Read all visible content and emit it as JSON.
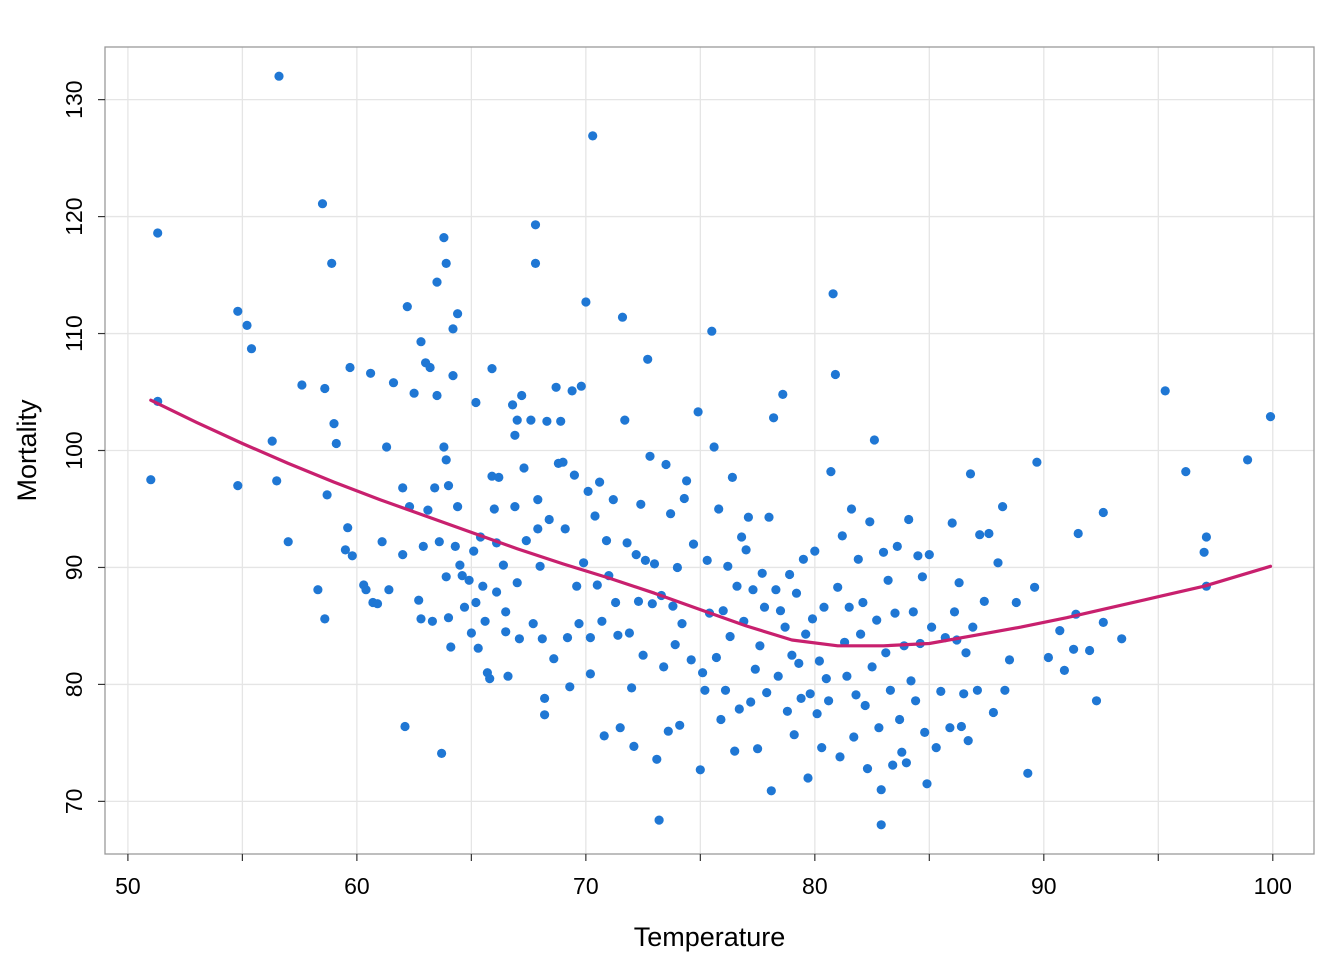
{
  "chart_data": {
    "type": "scatter",
    "title": "",
    "xlabel": "Temperature",
    "ylabel": "Mortality",
    "xlim": [
      49,
      101.8
    ],
    "ylim": [
      65.5,
      134.5
    ],
    "x_ticks": [
      50,
      60,
      70,
      80,
      90,
      100
    ],
    "y_ticks": [
      70,
      80,
      90,
      100,
      110,
      120,
      130
    ],
    "x_tick_labels": [
      "50",
      "60",
      "70",
      "80",
      "90",
      "100"
    ],
    "y_tick_labels": [
      "70",
      "80",
      "90",
      "100",
      "110",
      "120",
      "130"
    ],
    "grid": true,
    "colors": {
      "points": "#1f77d4",
      "smooth": "#c8206e",
      "grid": "#e5e5e5",
      "border": "#9a9a9a"
    },
    "points": [
      [
        51.0,
        97.5
      ],
      [
        51.3,
        104.2
      ],
      [
        51.3,
        118.6
      ],
      [
        54.8,
        111.9
      ],
      [
        54.8,
        97.0
      ],
      [
        55.2,
        110.7
      ],
      [
        55.4,
        108.7
      ],
      [
        56.3,
        100.8
      ],
      [
        56.5,
        97.4
      ],
      [
        56.6,
        132.0
      ],
      [
        57.0,
        92.2
      ],
      [
        57.6,
        105.6
      ],
      [
        58.3,
        88.1
      ],
      [
        58.5,
        121.1
      ],
      [
        58.6,
        105.3
      ],
      [
        58.6,
        85.6
      ],
      [
        58.7,
        96.2
      ],
      [
        58.9,
        116.0
      ],
      [
        59.0,
        102.3
      ],
      [
        59.1,
        100.6
      ],
      [
        59.5,
        91.5
      ],
      [
        59.6,
        93.4
      ],
      [
        59.7,
        107.1
      ],
      [
        59.8,
        91.0
      ],
      [
        60.3,
        88.5
      ],
      [
        60.4,
        88.1
      ],
      [
        60.6,
        106.6
      ],
      [
        60.7,
        87.0
      ],
      [
        60.9,
        86.9
      ],
      [
        61.1,
        92.2
      ],
      [
        61.3,
        100.3
      ],
      [
        61.4,
        88.1
      ],
      [
        61.6,
        105.8
      ],
      [
        62.0,
        96.8
      ],
      [
        62.0,
        91.1
      ],
      [
        62.1,
        76.4
      ],
      [
        62.2,
        112.3
      ],
      [
        62.3,
        95.2
      ],
      [
        62.5,
        104.9
      ],
      [
        62.7,
        87.2
      ],
      [
        62.8,
        109.3
      ],
      [
        62.8,
        85.6
      ],
      [
        62.9,
        91.8
      ],
      [
        63.0,
        107.5
      ],
      [
        63.1,
        94.9
      ],
      [
        63.2,
        107.1
      ],
      [
        63.3,
        85.4
      ],
      [
        63.4,
        96.8
      ],
      [
        63.5,
        114.4
      ],
      [
        63.5,
        104.7
      ],
      [
        63.6,
        92.2
      ],
      [
        63.7,
        74.1
      ],
      [
        63.8,
        118.2
      ],
      [
        63.8,
        100.3
      ],
      [
        63.9,
        116.0
      ],
      [
        63.9,
        99.2
      ],
      [
        63.9,
        89.2
      ],
      [
        64.0,
        97.0
      ],
      [
        64.0,
        85.7
      ],
      [
        64.1,
        83.2
      ],
      [
        64.2,
        110.4
      ],
      [
        64.2,
        106.4
      ],
      [
        64.3,
        91.8
      ],
      [
        64.4,
        111.7
      ],
      [
        64.4,
        95.2
      ],
      [
        64.5,
        90.2
      ],
      [
        64.6,
        89.3
      ],
      [
        64.7,
        86.6
      ],
      [
        64.9,
        88.9
      ],
      [
        65.0,
        84.4
      ],
      [
        65.1,
        91.4
      ],
      [
        65.2,
        104.1
      ],
      [
        65.2,
        87.0
      ],
      [
        65.3,
        83.1
      ],
      [
        65.4,
        92.6
      ],
      [
        65.5,
        88.4
      ],
      [
        65.6,
        85.4
      ],
      [
        65.7,
        81.0
      ],
      [
        65.8,
        80.5
      ],
      [
        65.9,
        107.0
      ],
      [
        65.9,
        97.8
      ],
      [
        66.0,
        95.0
      ],
      [
        66.1,
        92.1
      ],
      [
        66.1,
        87.9
      ],
      [
        66.2,
        97.7
      ],
      [
        66.4,
        90.2
      ],
      [
        66.5,
        86.2
      ],
      [
        66.5,
        84.5
      ],
      [
        66.6,
        80.7
      ],
      [
        66.8,
        103.9
      ],
      [
        66.9,
        101.3
      ],
      [
        66.9,
        95.2
      ],
      [
        67.0,
        102.6
      ],
      [
        67.0,
        88.7
      ],
      [
        67.1,
        83.9
      ],
      [
        67.2,
        104.7
      ],
      [
        67.3,
        98.5
      ],
      [
        67.4,
        92.3
      ],
      [
        67.6,
        102.6
      ],
      [
        67.7,
        85.2
      ],
      [
        67.8,
        119.3
      ],
      [
        67.8,
        116.0
      ],
      [
        67.9,
        95.8
      ],
      [
        67.9,
        93.3
      ],
      [
        68.0,
        90.1
      ],
      [
        68.1,
        83.9
      ],
      [
        68.2,
        78.8
      ],
      [
        68.2,
        77.4
      ],
      [
        68.3,
        102.5
      ],
      [
        68.4,
        94.1
      ],
      [
        68.6,
        82.2
      ],
      [
        68.7,
        105.4
      ],
      [
        68.8,
        98.9
      ],
      [
        68.9,
        102.5
      ],
      [
        69.0,
        99.0
      ],
      [
        69.1,
        93.3
      ],
      [
        69.2,
        84.0
      ],
      [
        69.3,
        79.8
      ],
      [
        69.4,
        105.1
      ],
      [
        69.5,
        97.9
      ],
      [
        69.6,
        88.4
      ],
      [
        69.7,
        85.2
      ],
      [
        69.8,
        105.5
      ],
      [
        69.9,
        90.4
      ],
      [
        70.0,
        112.7
      ],
      [
        70.1,
        96.5
      ],
      [
        70.2,
        84.0
      ],
      [
        70.2,
        80.9
      ],
      [
        70.3,
        126.9
      ],
      [
        70.4,
        94.4
      ],
      [
        70.5,
        88.5
      ],
      [
        70.6,
        97.3
      ],
      [
        70.7,
        85.4
      ],
      [
        70.8,
        75.6
      ],
      [
        70.9,
        92.3
      ],
      [
        71.0,
        89.3
      ],
      [
        71.2,
        95.8
      ],
      [
        71.3,
        87.0
      ],
      [
        71.4,
        84.2
      ],
      [
        71.5,
        76.3
      ],
      [
        71.6,
        111.4
      ],
      [
        71.7,
        102.6
      ],
      [
        71.8,
        92.1
      ],
      [
        71.9,
        84.4
      ],
      [
        72.0,
        79.7
      ],
      [
        72.1,
        74.7
      ],
      [
        72.2,
        91.1
      ],
      [
        72.3,
        87.1
      ],
      [
        72.4,
        95.4
      ],
      [
        72.5,
        82.5
      ],
      [
        72.6,
        90.6
      ],
      [
        72.7,
        107.8
      ],
      [
        72.8,
        99.5
      ],
      [
        72.9,
        86.9
      ],
      [
        73.0,
        90.3
      ],
      [
        73.1,
        73.6
      ],
      [
        73.2,
        68.4
      ],
      [
        73.3,
        87.6
      ],
      [
        73.4,
        81.5
      ],
      [
        73.5,
        98.8
      ],
      [
        73.6,
        76.0
      ],
      [
        73.7,
        94.6
      ],
      [
        73.8,
        86.7
      ],
      [
        73.9,
        83.4
      ],
      [
        74.0,
        90.0
      ],
      [
        74.1,
        76.5
      ],
      [
        74.2,
        85.2
      ],
      [
        74.3,
        95.9
      ],
      [
        74.4,
        97.4
      ],
      [
        74.6,
        82.1
      ],
      [
        74.7,
        92.0
      ],
      [
        74.9,
        103.3
      ],
      [
        75.0,
        72.7
      ],
      [
        75.1,
        81.0
      ],
      [
        75.2,
        79.5
      ],
      [
        75.3,
        90.6
      ],
      [
        75.4,
        86.1
      ],
      [
        75.5,
        110.2
      ],
      [
        75.6,
        100.3
      ],
      [
        75.7,
        82.3
      ],
      [
        75.8,
        95.0
      ],
      [
        75.9,
        77.0
      ],
      [
        76.0,
        86.3
      ],
      [
        76.1,
        79.5
      ],
      [
        76.2,
        90.1
      ],
      [
        76.3,
        84.1
      ],
      [
        76.4,
        97.7
      ],
      [
        76.5,
        74.3
      ],
      [
        76.6,
        88.4
      ],
      [
        76.7,
        77.9
      ],
      [
        76.8,
        92.6
      ],
      [
        76.9,
        85.4
      ],
      [
        77.0,
        91.5
      ],
      [
        77.1,
        94.3
      ],
      [
        77.2,
        78.5
      ],
      [
        77.3,
        88.1
      ],
      [
        77.4,
        81.3
      ],
      [
        77.5,
        74.5
      ],
      [
        77.6,
        83.3
      ],
      [
        77.7,
        89.5
      ],
      [
        77.8,
        86.6
      ],
      [
        77.9,
        79.3
      ],
      [
        78.0,
        94.3
      ],
      [
        78.1,
        70.9
      ],
      [
        78.2,
        102.8
      ],
      [
        78.3,
        88.1
      ],
      [
        78.4,
        80.7
      ],
      [
        78.5,
        86.3
      ],
      [
        78.6,
        104.8
      ],
      [
        78.7,
        84.9
      ],
      [
        78.8,
        77.7
      ],
      [
        78.9,
        89.4
      ],
      [
        79.0,
        82.5
      ],
      [
        79.1,
        75.7
      ],
      [
        79.2,
        87.8
      ],
      [
        79.3,
        81.8
      ],
      [
        79.4,
        78.8
      ],
      [
        79.5,
        90.7
      ],
      [
        79.6,
        84.3
      ],
      [
        79.7,
        72.0
      ],
      [
        79.8,
        79.2
      ],
      [
        79.9,
        85.6
      ],
      [
        80.0,
        91.4
      ],
      [
        80.1,
        77.5
      ],
      [
        80.2,
        82.0
      ],
      [
        80.3,
        74.6
      ],
      [
        80.4,
        86.6
      ],
      [
        80.5,
        80.5
      ],
      [
        80.6,
        78.6
      ],
      [
        80.7,
        98.2
      ],
      [
        80.8,
        113.4
      ],
      [
        80.9,
        106.5
      ],
      [
        81.0,
        88.3
      ],
      [
        81.1,
        73.8
      ],
      [
        81.2,
        92.7
      ],
      [
        81.3,
        83.6
      ],
      [
        81.4,
        80.7
      ],
      [
        81.5,
        86.6
      ],
      [
        81.6,
        95.0
      ],
      [
        81.7,
        75.5
      ],
      [
        81.8,
        79.1
      ],
      [
        81.9,
        90.7
      ],
      [
        82.0,
        84.3
      ],
      [
        82.1,
        87.0
      ],
      [
        82.2,
        78.2
      ],
      [
        82.3,
        72.8
      ],
      [
        82.4,
        93.9
      ],
      [
        82.5,
        81.5
      ],
      [
        82.6,
        100.9
      ],
      [
        82.7,
        85.5
      ],
      [
        82.8,
        76.3
      ],
      [
        82.9,
        71.0
      ],
      [
        82.9,
        68.0
      ],
      [
        83.0,
        91.3
      ],
      [
        83.1,
        82.7
      ],
      [
        83.2,
        88.9
      ],
      [
        83.3,
        79.5
      ],
      [
        83.4,
        73.1
      ],
      [
        83.5,
        86.1
      ],
      [
        83.6,
        91.8
      ],
      [
        83.7,
        77.0
      ],
      [
        83.8,
        74.2
      ],
      [
        83.9,
        83.3
      ],
      [
        84.0,
        73.3
      ],
      [
        84.1,
        94.1
      ],
      [
        84.2,
        80.3
      ],
      [
        84.3,
        86.2
      ],
      [
        84.4,
        78.6
      ],
      [
        84.5,
        91.0
      ],
      [
        84.6,
        83.5
      ],
      [
        84.7,
        89.2
      ],
      [
        84.8,
        75.9
      ],
      [
        84.9,
        71.5
      ],
      [
        85.0,
        91.1
      ],
      [
        85.1,
        84.9
      ],
      [
        85.3,
        74.6
      ],
      [
        85.5,
        79.4
      ],
      [
        85.7,
        84.0
      ],
      [
        85.9,
        76.3
      ],
      [
        86.0,
        93.8
      ],
      [
        86.1,
        86.2
      ],
      [
        86.2,
        83.8
      ],
      [
        86.3,
        88.7
      ],
      [
        86.4,
        76.4
      ],
      [
        86.5,
        79.2
      ],
      [
        86.6,
        82.7
      ],
      [
        86.7,
        75.2
      ],
      [
        86.8,
        98.0
      ],
      [
        86.9,
        84.9
      ],
      [
        87.1,
        79.5
      ],
      [
        87.2,
        92.8
      ],
      [
        87.4,
        87.1
      ],
      [
        87.6,
        92.9
      ],
      [
        87.8,
        77.6
      ],
      [
        88.0,
        90.4
      ],
      [
        88.2,
        95.2
      ],
      [
        88.3,
        79.5
      ],
      [
        88.5,
        82.1
      ],
      [
        88.8,
        87.0
      ],
      [
        89.3,
        72.4
      ],
      [
        89.6,
        88.3
      ],
      [
        89.7,
        99.0
      ],
      [
        90.2,
        82.3
      ],
      [
        90.7,
        84.6
      ],
      [
        90.9,
        81.2
      ],
      [
        91.3,
        83.0
      ],
      [
        91.4,
        86.0
      ],
      [
        91.5,
        92.9
      ],
      [
        92.0,
        82.9
      ],
      [
        92.3,
        78.6
      ],
      [
        92.6,
        94.7
      ],
      [
        92.6,
        85.3
      ],
      [
        93.4,
        83.9
      ],
      [
        95.3,
        105.1
      ],
      [
        96.2,
        98.2
      ],
      [
        97.0,
        91.3
      ],
      [
        97.1,
        92.6
      ],
      [
        97.1,
        88.4
      ],
      [
        98.9,
        99.2
      ],
      [
        99.9,
        102.9
      ]
    ],
    "smooth_curve": [
      [
        51.0,
        104.3
      ],
      [
        53.0,
        102.4
      ],
      [
        55.0,
        100.6
      ],
      [
        57.0,
        98.9
      ],
      [
        59.0,
        97.3
      ],
      [
        61.0,
        95.8
      ],
      [
        63.0,
        94.4
      ],
      [
        65.0,
        93.0
      ],
      [
        67.0,
        91.6
      ],
      [
        69.0,
        90.3
      ],
      [
        71.0,
        89.1
      ],
      [
        73.0,
        87.8
      ],
      [
        75.0,
        86.4
      ],
      [
        77.0,
        85.0
      ],
      [
        79.0,
        83.8
      ],
      [
        81.0,
        83.3
      ],
      [
        83.0,
        83.3
      ],
      [
        85.0,
        83.5
      ],
      [
        87.0,
        84.2
      ],
      [
        89.0,
        84.9
      ],
      [
        91.0,
        85.7
      ],
      [
        93.0,
        86.6
      ],
      [
        95.0,
        87.5
      ],
      [
        97.0,
        88.4
      ],
      [
        99.9,
        90.1
      ]
    ]
  }
}
